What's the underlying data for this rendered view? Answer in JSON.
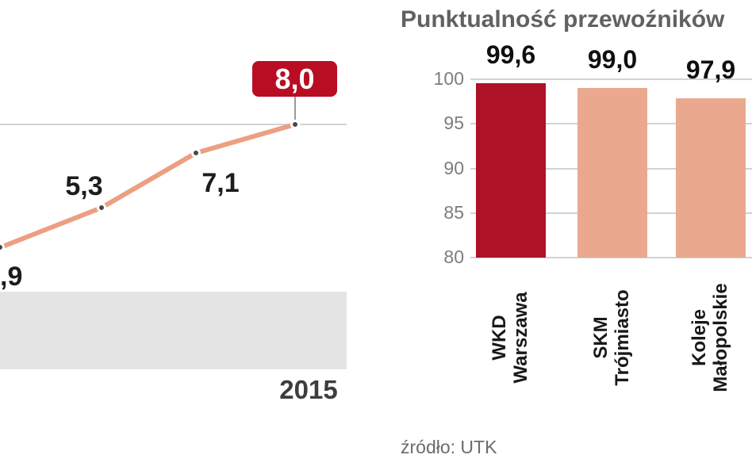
{
  "colors": {
    "line": "#ec9f81",
    "badge": "#b80d23",
    "band": "#e4e4e4",
    "grid": "#d2d2d2"
  },
  "chart_data": [
    {
      "type": "line",
      "title": "",
      "point_labels": [
        ",9",
        "5,3",
        "7,1",
        "8,0"
      ],
      "values": [
        null,
        5.3,
        7.1,
        8.0
      ],
      "x_tick_labels": [
        "2015"
      ],
      "grid": "horizontal",
      "line_color": "#ec9f81",
      "highlight_badge_color": "#b80d23"
    },
    {
      "type": "bar",
      "title": "Punktualność przewoźników",
      "categories": [
        {
          "label": "WKD Warszawa",
          "line1": "WKD",
          "line2": "Warszawa"
        },
        {
          "label": "SKM Trójmiasto",
          "line1": "SKM",
          "line2": "Trójmiasto"
        },
        {
          "label": "Koleje Małopolskie",
          "line1": "Koleje",
          "line2": "Małopolskie"
        }
      ],
      "values": [
        99.6,
        99.0,
        97.9
      ],
      "value_labels": [
        "99,6",
        "99,0",
        "97,9"
      ],
      "ylim": [
        80,
        100
      ],
      "yticks": [
        100,
        95,
        90,
        85,
        80
      ],
      "bar_colors": [
        "#ad1226",
        "#eaa98e",
        "#eaa98e"
      ],
      "grid": "horizontal",
      "legend": "none",
      "source": "źródło: UTK"
    }
  ]
}
